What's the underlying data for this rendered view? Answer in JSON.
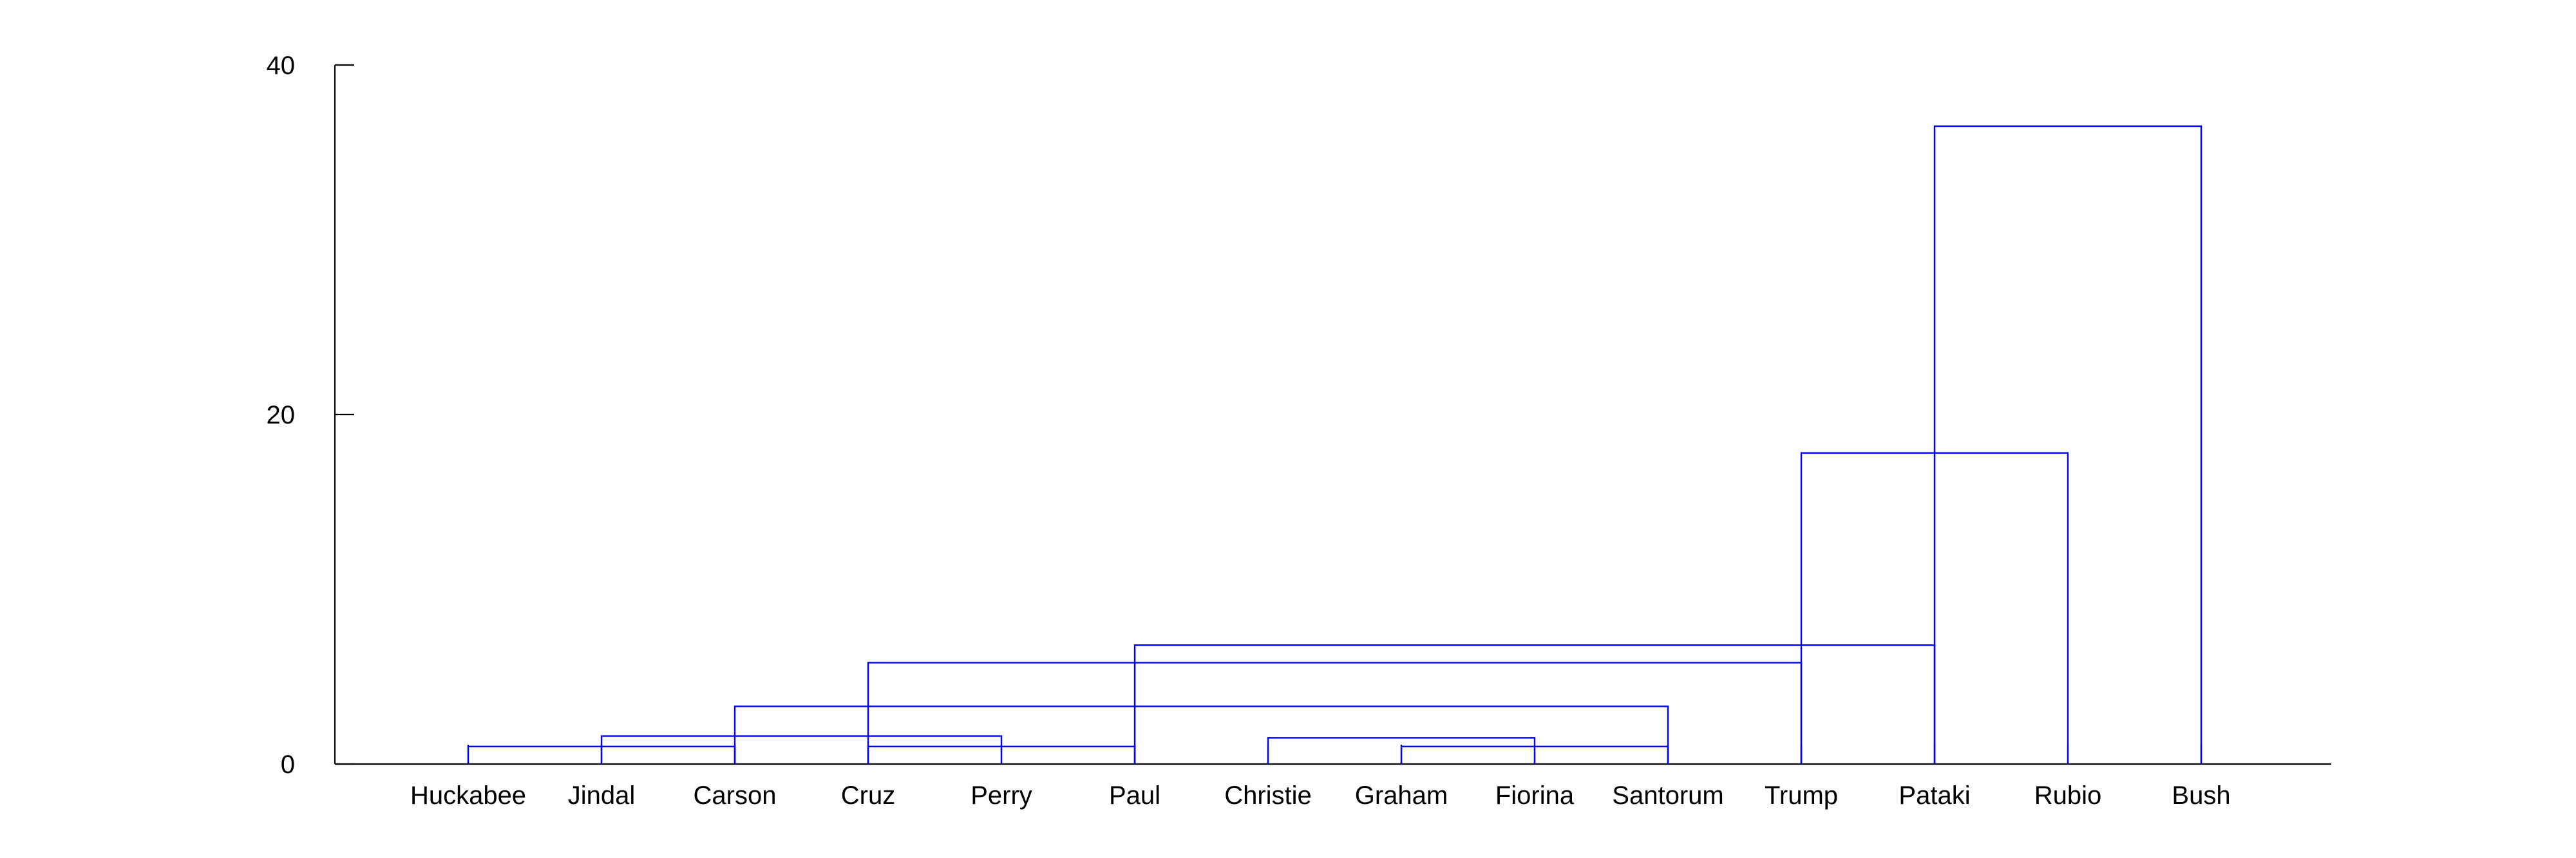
{
  "chart_data": {
    "type": "dendrogram",
    "title": "",
    "xlabel": "",
    "ylabel": "",
    "ylim": [
      0,
      40
    ],
    "yticks": [
      0,
      20,
      40
    ],
    "grid": false,
    "line_color": "#0000ff",
    "axis_color": "#000000",
    "leaves": [
      "Huckabee",
      "Jindal",
      "Carson",
      "Cruz",
      "Perry",
      "Paul",
      "Christie",
      "Graham",
      "Fiorina",
      "Santorum",
      "Trump",
      "Pataki",
      "Rubio",
      "Bush"
    ],
    "merges": [
      {
        "left": "Huckabee",
        "right": "Carson",
        "height": 1.0
      },
      {
        "left": "Cruz",
        "right": "Paul",
        "height": 1.0
      },
      {
        "left": "Graham",
        "right": "Santorum",
        "height": 1.0
      },
      {
        "left": "Jindal",
        "right": "Perry",
        "height": 1.6
      },
      {
        "left": "Christie",
        "right": "Fiorina",
        "height": 1.5
      },
      {
        "left": "Carson",
        "right": "Santorum",
        "height": 3.3
      },
      {
        "left": "Cruz",
        "right": "Trump",
        "height": 5.8
      },
      {
        "left": "Paul",
        "right": "Pataki",
        "height": 6.8
      },
      {
        "left": "Trump",
        "right": "Rubio",
        "height": 17.8
      },
      {
        "left": "Pataki",
        "right": "Bush",
        "height": 36.5
      }
    ]
  }
}
